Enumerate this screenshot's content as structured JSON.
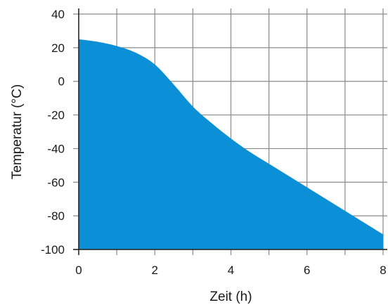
{
  "chart_data": {
    "type": "area",
    "xlabel": "Zeit (h)",
    "ylabel": "Temperatur (°C)",
    "xlim": [
      0,
      8
    ],
    "ylim": [
      -100,
      40
    ],
    "x_ticks": [
      0,
      2,
      4,
      6,
      8
    ],
    "y_ticks": [
      40,
      20,
      0,
      -20,
      -40,
      -60,
      -80,
      -100
    ],
    "x_grid_step": 1,
    "y_grid_step": 20,
    "grid": true,
    "fill_color": "#0b8fd6",
    "grid_color": "#8a8a8a",
    "series": [
      {
        "x": [
          0,
          0.5,
          1,
          1.5,
          2,
          2.5,
          3,
          3.5,
          4,
          4.5,
          5,
          5.5,
          6,
          6.5,
          7,
          7.5,
          8
        ],
        "y": [
          25,
          23.5,
          21,
          17,
          10,
          -2,
          -15,
          -25,
          -34,
          -42,
          -49,
          -56,
          -63,
          -70,
          -77,
          -84,
          -91
        ]
      }
    ]
  }
}
